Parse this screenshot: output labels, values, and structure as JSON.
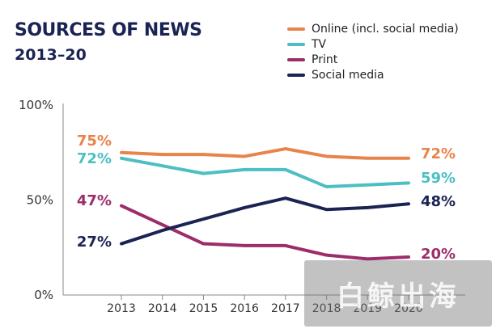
{
  "chart_data": {
    "type": "line",
    "title": "SOURCES OF NEWS",
    "subtitle": "2013–20",
    "categories": [
      "2013",
      "2014",
      "2015",
      "2016",
      "2017",
      "2018",
      "2019",
      "2020"
    ],
    "ylim": [
      0,
      100
    ],
    "yticks": [
      "0%",
      "50%",
      "100%"
    ],
    "grid": false,
    "series": [
      {
        "name": "Online (incl. social media)",
        "color": "#e8834a",
        "values": [
          75,
          74,
          74,
          73,
          77,
          73,
          72,
          72
        ],
        "start_label": "75%",
        "end_label": "72%"
      },
      {
        "name": "TV",
        "color": "#4dbfc2",
        "values": [
          72,
          68,
          64,
          66,
          66,
          57,
          58,
          59
        ],
        "start_label": "72%",
        "end_label": "59%"
      },
      {
        "name": "Print",
        "color": "#9c2d6a",
        "values": [
          47,
          37,
          27,
          26,
          26,
          21,
          19,
          20
        ],
        "start_label": "47%",
        "end_label": "20%"
      },
      {
        "name": "Social media",
        "color": "#1b2354",
        "values": [
          27,
          34,
          40,
          46,
          51,
          45,
          46,
          48
        ],
        "start_label": "27%",
        "end_label": "48%"
      }
    ]
  },
  "watermark": "白鲸出海"
}
